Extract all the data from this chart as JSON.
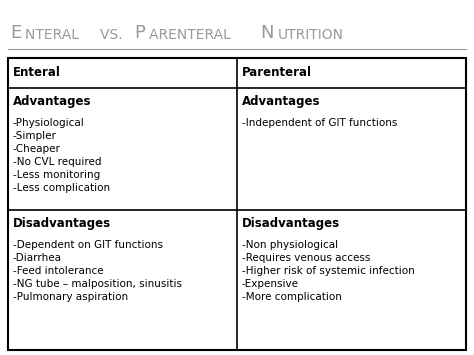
{
  "title": "Enteral vs. Parenteral Nutrition",
  "title_display": [
    {
      "text": "E",
      "big": true
    },
    {
      "text": "nteral ",
      "big": false
    },
    {
      "text": "vs. ",
      "big": false
    },
    {
      "text": "P",
      "big": true
    },
    {
      "text": "arenteral ",
      "big": false
    },
    {
      "text": "N",
      "big": true
    },
    {
      "text": "utrition",
      "big": false
    }
  ],
  "title_color": "#999999",
  "bg_color": "#ffffff",
  "col_headers": [
    "Enteral",
    "Parenteral"
  ],
  "enteral_advantages_header": "Advantages",
  "enteral_advantages": [
    "-Physiological",
    "-Simpler",
    "-Cheaper",
    "-No CVL required",
    "-Less monitoring",
    "-Less complication"
  ],
  "parenteral_advantages_header": "Advantages",
  "parenteral_advantages": [
    "-Independent of GIT functions"
  ],
  "enteral_disadvantages_header": "Disadvantages",
  "enteral_disadvantages": [
    "-Dependent on GIT functions",
    "-Diarrhea",
    "-Feed intolerance",
    "-NG tube – malposition, sinusitis",
    "-Pulmonary aspiration"
  ],
  "parenteral_disadvantages_header": "Disadvantages",
  "parenteral_disadvantages": [
    "-Non physiological",
    "-Requires venous access",
    "-Higher risk of systemic infection",
    "-Expensive",
    "-More complication"
  ],
  "header_fontsize": 8.5,
  "body_fontsize": 7.5,
  "title_fontsize_big": 13,
  "title_fontsize_small": 10
}
